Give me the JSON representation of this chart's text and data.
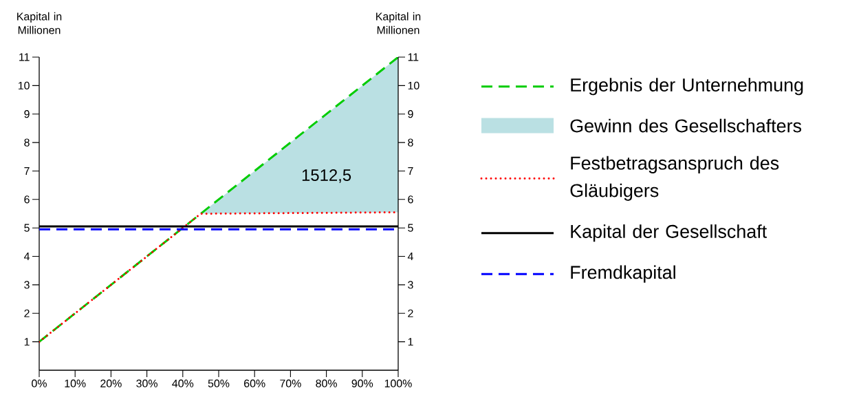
{
  "chart_data": {
    "type": "line",
    "ylabel": "Kapital in Millionen",
    "y2label": "Kapital in Millionen",
    "xlim": [
      0,
      100
    ],
    "ylim": [
      0,
      11
    ],
    "y2lim": [
      0,
      11
    ],
    "xticks": [
      {
        "value": 0,
        "label": "0%"
      },
      {
        "value": 10,
        "label": "10%"
      },
      {
        "value": 20,
        "label": "20%"
      },
      {
        "value": 30,
        "label": "30%"
      },
      {
        "value": 40,
        "label": "40%"
      },
      {
        "value": 50,
        "label": "50%"
      },
      {
        "value": 60,
        "label": "60%"
      },
      {
        "value": 70,
        "label": "70%"
      },
      {
        "value": 80,
        "label": "80%"
      },
      {
        "value": 90,
        "label": "90%"
      },
      {
        "value": 100,
        "label": "100%"
      }
    ],
    "yticks": [
      1,
      2,
      3,
      4,
      5,
      6,
      7,
      8,
      9,
      10,
      11
    ],
    "y2ticks": [
      1,
      2,
      3,
      4,
      5,
      6,
      7,
      8,
      9,
      10,
      11
    ],
    "series": [
      {
        "name": "Ergebnis der Unternehmung",
        "color": "#00cc00",
        "line_style": "dashed",
        "x": [
          0,
          100
        ],
        "values": [
          1,
          11
        ]
      },
      {
        "name": "Gewinn des Gesellschafters",
        "type": "area",
        "color": "#bae0e3",
        "x": [
          45,
          100
        ],
        "values": [
          5.5,
          11
        ]
      },
      {
        "name": "Festbetragsanspruch des Gläubigers",
        "color": "#ff0000",
        "line_style": "dotted",
        "x": [
          0,
          45,
          100
        ],
        "values": [
          1,
          5.5,
          5.55
        ]
      },
      {
        "name": "Kapital der Gesellschaft",
        "color": "#000000",
        "line_style": "solid",
        "x": [
          0,
          100
        ],
        "values": [
          5.05,
          5.05
        ]
      },
      {
        "name": "Fremdkapital",
        "color": "#0000ff",
        "line_style": "dashed",
        "x": [
          0,
          100
        ],
        "values": [
          4.95,
          4.95
        ]
      }
    ],
    "annotations": [
      "1512,5"
    ],
    "legend": "right",
    "grid": false
  }
}
